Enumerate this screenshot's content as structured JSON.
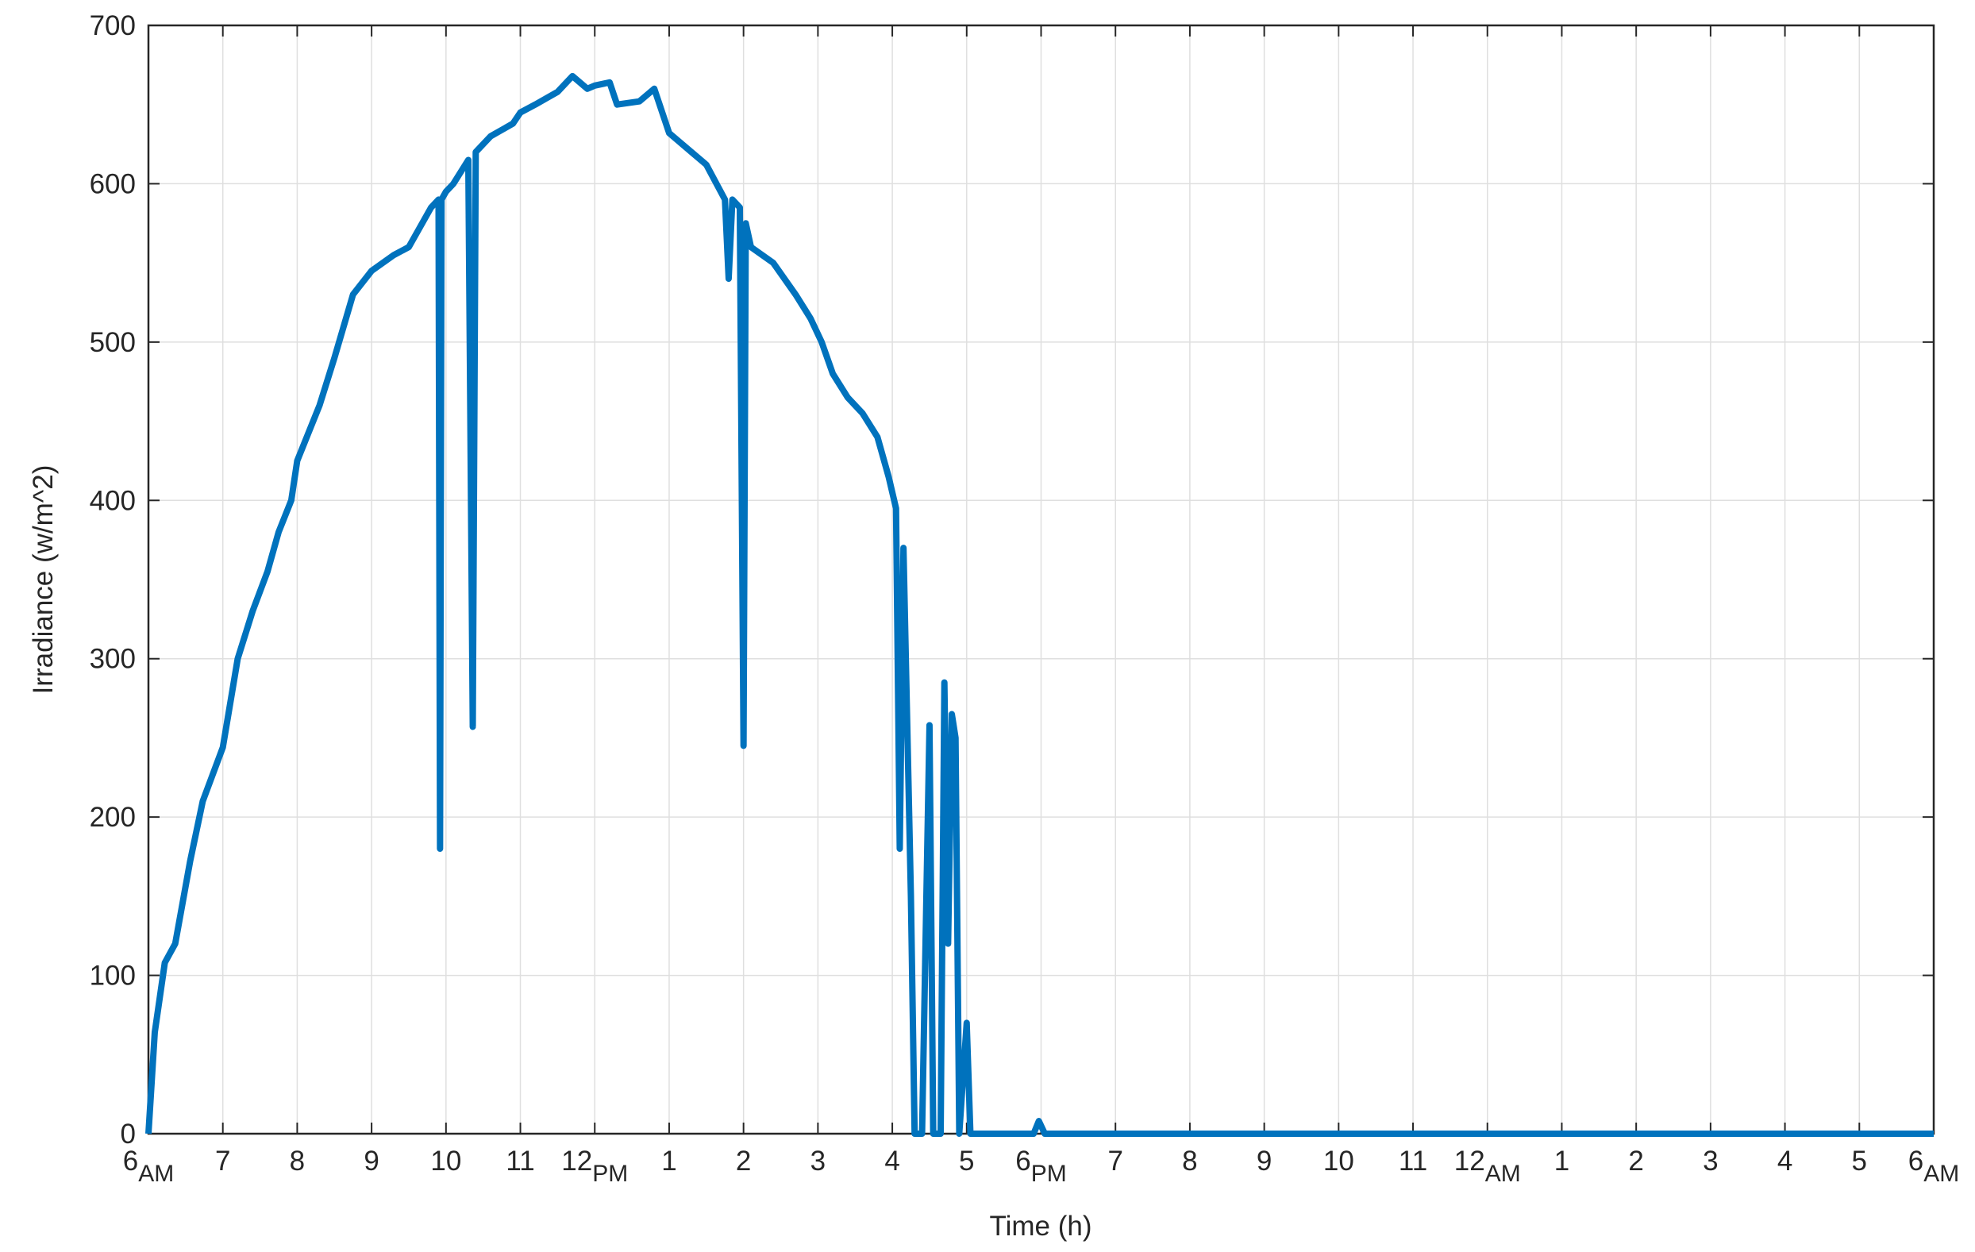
{
  "chart_data": {
    "type": "line",
    "xlabel": "Time (h)",
    "ylabel": "Irradiance (w/m^2)",
    "xlim": [
      0,
      24
    ],
    "ylim": [
      0,
      700
    ],
    "xticks": [
      {
        "value": 0,
        "label": "6",
        "sub": "AM"
      },
      {
        "value": 1,
        "label": "7"
      },
      {
        "value": 2,
        "label": "8"
      },
      {
        "value": 3,
        "label": "9"
      },
      {
        "value": 4,
        "label": "10"
      },
      {
        "value": 5,
        "label": "11"
      },
      {
        "value": 6,
        "label": "12",
        "sub": "PM"
      },
      {
        "value": 7,
        "label": "1"
      },
      {
        "value": 8,
        "label": "2"
      },
      {
        "value": 9,
        "label": "3"
      },
      {
        "value": 10,
        "label": "4"
      },
      {
        "value": 11,
        "label": "5"
      },
      {
        "value": 12,
        "label": "6",
        "sub": "PM"
      },
      {
        "value": 13,
        "label": "7"
      },
      {
        "value": 14,
        "label": "8"
      },
      {
        "value": 15,
        "label": "9"
      },
      {
        "value": 16,
        "label": "10"
      },
      {
        "value": 17,
        "label": "11"
      },
      {
        "value": 18,
        "label": "12",
        "sub": "AM"
      },
      {
        "value": 19,
        "label": "1"
      },
      {
        "value": 20,
        "label": "2"
      },
      {
        "value": 21,
        "label": "3"
      },
      {
        "value": 22,
        "label": "4"
      },
      {
        "value": 23,
        "label": "5"
      },
      {
        "value": 24,
        "label": "6",
        "sub": "AM"
      }
    ],
    "yticks": [
      0,
      100,
      200,
      300,
      400,
      500,
      600,
      700
    ],
    "grid": true,
    "series": [
      {
        "color": "#0072bd",
        "x": [
          0,
          0.085,
          0.22,
          0.36,
          0.56,
          0.73,
          1,
          1.2,
          1.4,
          1.6,
          1.75,
          1.92,
          2,
          2.3,
          2.5,
          2.75,
          3,
          3.3,
          3.5,
          3.8,
          3.9,
          3.92,
          3.94,
          4,
          4.1,
          4.3,
          4.36,
          4.4,
          4.6,
          4.9,
          5,
          5.2,
          5.5,
          5.7,
          5.9,
          6,
          6.2,
          6.3,
          6.6,
          6.8,
          7,
          7.3,
          7.5,
          7.75,
          7.8,
          7.85,
          7.95,
          8,
          8.03,
          8.1,
          8.4,
          8.7,
          8.9,
          9.05,
          9.2,
          9.4,
          9.6,
          9.8,
          9.95,
          10.05,
          10.1,
          10.15,
          10.25,
          10.3,
          10.4,
          10.5,
          10.55,
          10.65,
          10.7,
          10.75,
          10.8,
          10.85,
          10.9,
          11,
          11.05,
          11.5,
          11.9,
          11.97,
          12.05,
          24
        ],
        "values": [
          0,
          64,
          108,
          120,
          172,
          210,
          244,
          300,
          330,
          355,
          380,
          400,
          425,
          460,
          490,
          530,
          545,
          555,
          560,
          585,
          590,
          180,
          590,
          595,
          600,
          615,
          257,
          620,
          630,
          638,
          645,
          650,
          658,
          668,
          660,
          662,
          664,
          650,
          652,
          660,
          632,
          620,
          612,
          590,
          540,
          590,
          585,
          245,
          575,
          560,
          550,
          530,
          515,
          500,
          480,
          465,
          455,
          440,
          415,
          395,
          180,
          370,
          150,
          0,
          0,
          258,
          0,
          0,
          285,
          120,
          265,
          250,
          0,
          70,
          0,
          0,
          0,
          8,
          0,
          0
        ]
      }
    ]
  }
}
